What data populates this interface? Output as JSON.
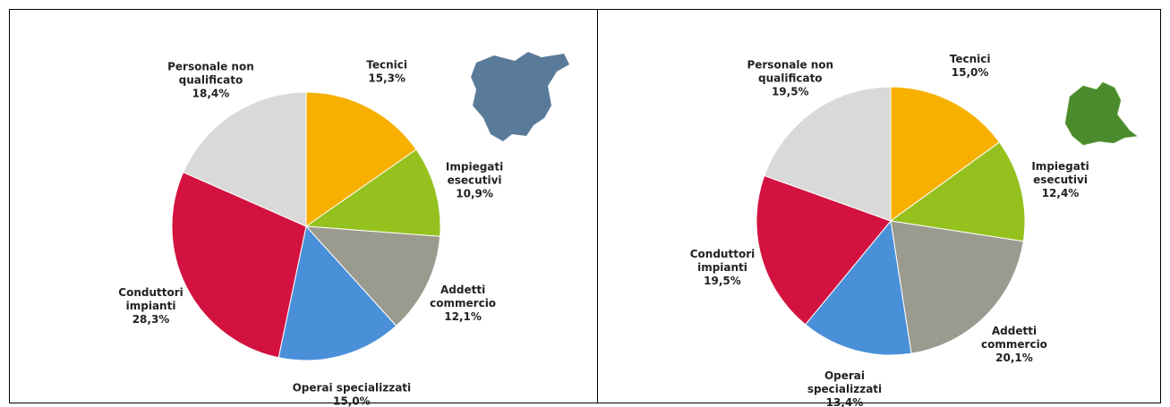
{
  "chart_data": [
    {
      "type": "pie",
      "categories": [
        "Tecnici",
        "Impiegati\nesecutivi",
        "Addetti\ncommercio",
        "Operai specializzati",
        "Conduttori\nimpianti",
        "Personale non\nqualificato"
      ],
      "values": [
        15.3,
        10.9,
        12.1,
        15.0,
        28.3,
        18.4
      ],
      "value_labels": [
        "15,3%",
        "10,9%",
        "12,1%",
        "15,0%",
        "28,3%",
        "18,4%"
      ],
      "colors": [
        "#f7b000",
        "#95c11f",
        "#9b9a8e",
        "#4a90d9",
        "#d3123f",
        "#d9d9d9"
      ]
    },
    {
      "type": "pie",
      "categories": [
        "Tecnici",
        "Impiegati\nesecutivi",
        "Addetti\ncommercio",
        "Operai\nspecializzati",
        "Conduttori\nimpianti",
        "Personale non\nqualificato"
      ],
      "values": [
        15.0,
        12.4,
        20.1,
        13.4,
        19.5,
        19.5
      ],
      "value_labels": [
        "15,0%",
        "12,4%",
        "20,1%",
        "13,4%",
        "19,5%",
        "19,5%"
      ],
      "colors": [
        "#f7b000",
        "#95c11f",
        "#9b9a8e",
        "#4a90d9",
        "#d3123f",
        "#d9d9d9"
      ]
    }
  ]
}
